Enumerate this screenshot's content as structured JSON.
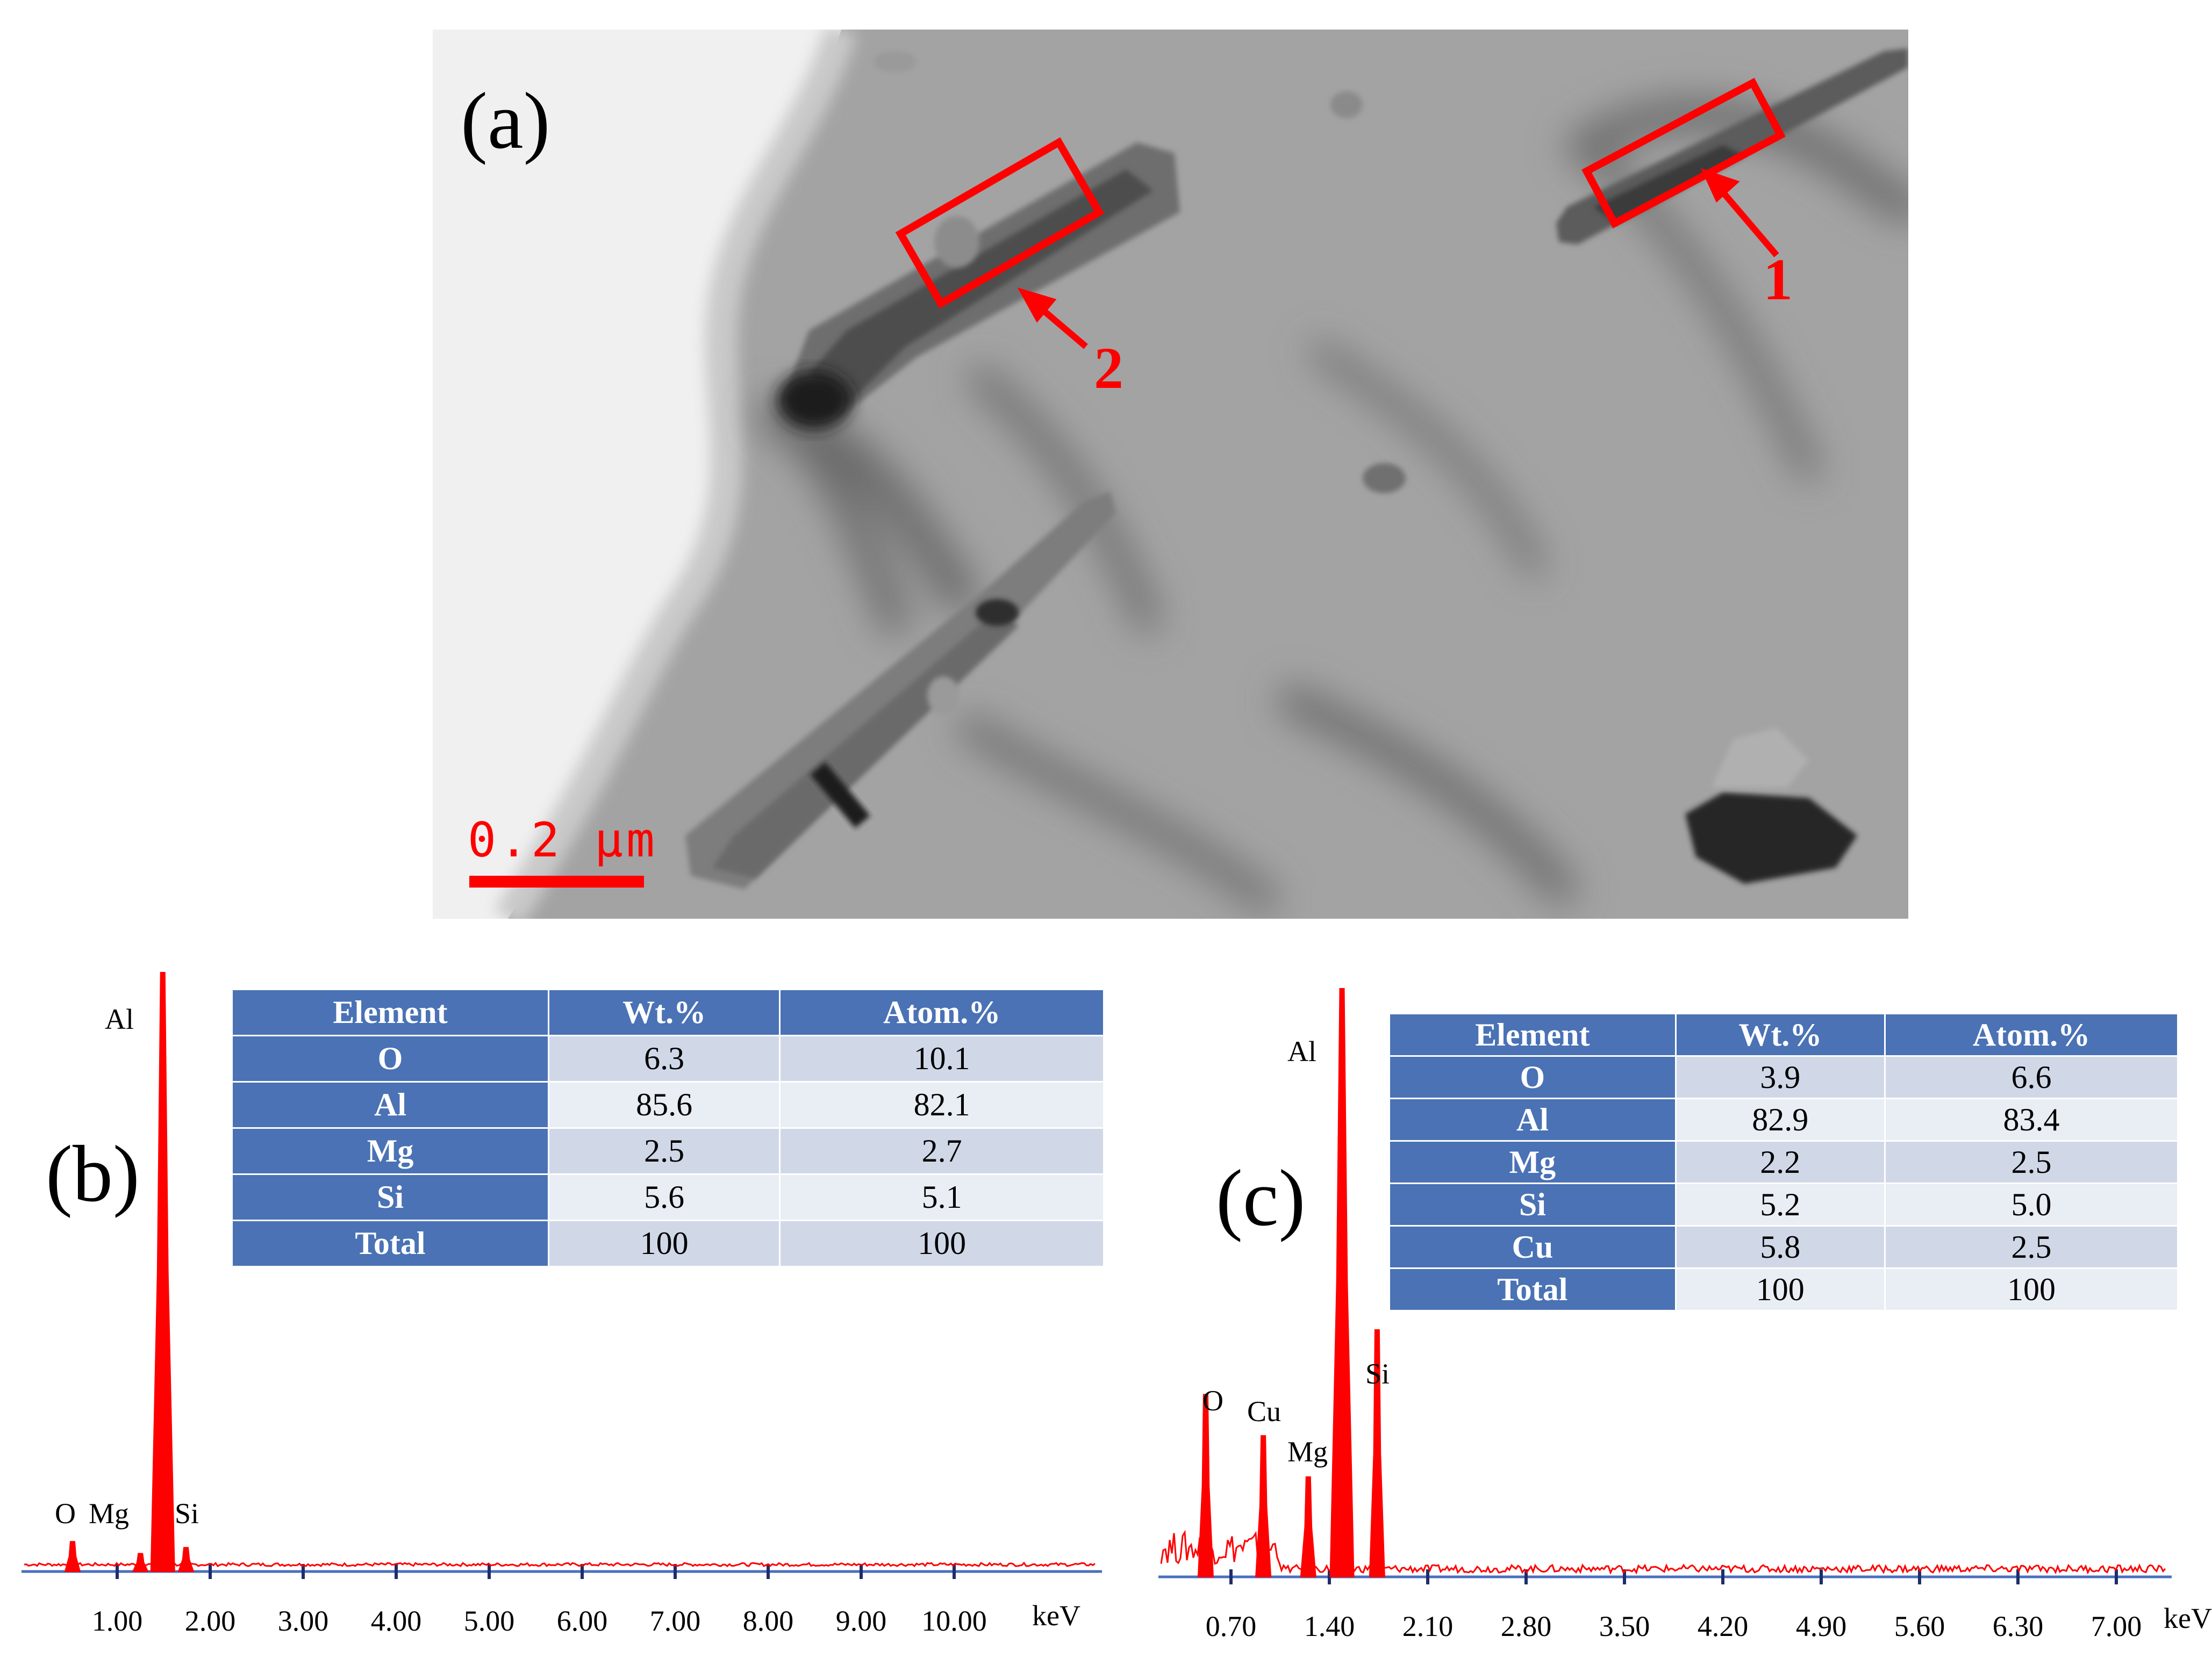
{
  "panel_a": {
    "label": "(a)",
    "markers": [
      "1",
      "2"
    ],
    "scale_bar": "0.2 μm",
    "colors": {
      "annotation": "#ff0000",
      "background_light": "#f1f1f1",
      "background_gray": "#9a9a9a"
    }
  },
  "panel_b": {
    "label": "(b)",
    "peak_labels": [
      "Al",
      "O",
      "Mg",
      "Si"
    ],
    "axis_unit": "keV",
    "table": {
      "headers": [
        "Element",
        "Wt.%",
        "Atom.%"
      ],
      "rows": [
        [
          "O",
          "6.3",
          "10.1"
        ],
        [
          "Al",
          "85.6",
          "82.1"
        ],
        [
          "Mg",
          "2.5",
          "2.7"
        ],
        [
          "Si",
          "5.6",
          "5.1"
        ],
        [
          "Total",
          "100",
          "100"
        ]
      ]
    }
  },
  "panel_c": {
    "label": "(c)",
    "peak_labels": [
      "Al",
      "O",
      "Cu",
      "Mg",
      "Si"
    ],
    "axis_unit": "keV",
    "table": {
      "headers": [
        "Element",
        "Wt.%",
        "Atom.%"
      ],
      "rows": [
        [
          "O",
          "3.9",
          "6.6"
        ],
        [
          "Al",
          "82.9",
          "83.4"
        ],
        [
          "Mg",
          "2.2",
          "2.5"
        ],
        [
          "Si",
          "5.2",
          "5.0"
        ],
        [
          "Cu",
          "5.8",
          "2.5"
        ],
        [
          "Total",
          "100",
          "100"
        ]
      ]
    }
  },
  "chart_data": [
    {
      "type": "bar",
      "xlabel": "keV",
      "x_ticks": [
        "1.00",
        "2.00",
        "3.00",
        "4.00",
        "5.00",
        "6.00",
        "7.00",
        "8.00",
        "9.00",
        "10.00"
      ],
      "xlim": [
        0.0,
        11.0
      ],
      "series": [
        {
          "peaks": [
            {
              "element": "O",
              "energy": 0.52,
              "rel_height": 0.05
            },
            {
              "element": "Mg",
              "energy": 1.25,
              "rel_height": 0.03
            },
            {
              "element": "Al",
              "energy": 1.49,
              "rel_height": 1.0
            },
            {
              "element": "Si",
              "energy": 1.74,
              "rel_height": 0.04
            }
          ]
        }
      ],
      "color": "#ff0000"
    },
    {
      "type": "bar",
      "xlabel": "keV",
      "x_ticks": [
        "0.70",
        "1.40",
        "2.10",
        "2.80",
        "3.50",
        "4.20",
        "4.90",
        "5.60",
        "6.30",
        "7.00"
      ],
      "xlim": [
        0.0,
        7.5
      ],
      "series": [
        {
          "peaks": [
            {
              "element": "O",
              "energy": 0.52,
              "rel_height": 0.31
            },
            {
              "element": "Cu",
              "energy": 0.93,
              "rel_height": 0.24
            },
            {
              "element": "Mg",
              "energy": 1.25,
              "rel_height": 0.17
            },
            {
              "element": "Al",
              "energy": 1.49,
              "rel_height": 1.0
            },
            {
              "element": "Si",
              "energy": 1.74,
              "rel_height": 0.42
            }
          ]
        }
      ],
      "color": "#ff0000"
    }
  ]
}
